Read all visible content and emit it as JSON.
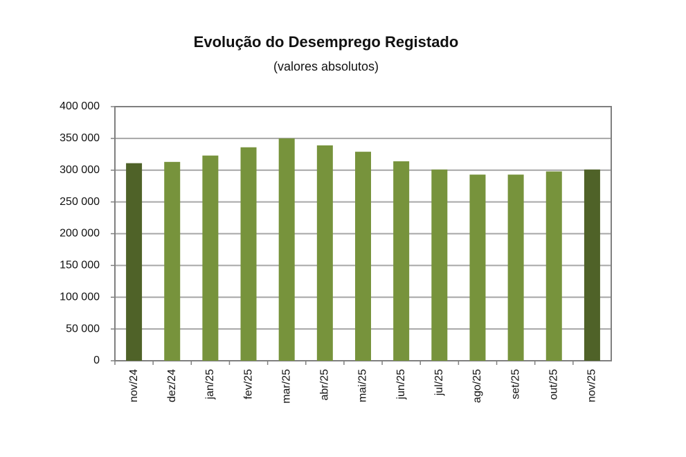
{
  "chart_data": {
    "type": "bar",
    "title": "Evolução do Desemprego Registado",
    "subtitle": "(valores absolutos)",
    "categories": [
      "nov/24",
      "dez/24",
      "jan/25",
      "fev/25",
      "mar/25",
      "abr/25",
      "mai/25",
      "jun/25",
      "jul/25",
      "ago/25",
      "set/25",
      "out/25",
      "nov/25"
    ],
    "values": [
      311000,
      313000,
      323000,
      336000,
      350000,
      339000,
      329000,
      314000,
      301000,
      293000,
      293000,
      298000,
      301000
    ],
    "colors": [
      "#4f6228",
      "#77933c",
      "#77933c",
      "#77933c",
      "#77933c",
      "#77933c",
      "#77933c",
      "#77933c",
      "#77933c",
      "#77933c",
      "#77933c",
      "#77933c",
      "#4f6228"
    ],
    "ylim": [
      0,
      400000
    ],
    "yticks": [
      0,
      {
        "value": 50000,
        "label": "50 000"
      },
      {
        "value": 100000,
        "label": "100 000"
      },
      {
        "value": 150000,
        "label": "150 000"
      },
      {
        "value": 200000,
        "label": "200 000"
      },
      {
        "value": 250000,
        "label": "250 000"
      },
      {
        "value": 300000,
        "label": "300 000"
      },
      {
        "value": 350000,
        "label": "350 000"
      },
      {
        "value": 400000,
        "label": "400 000"
      }
    ],
    "grid": true
  }
}
